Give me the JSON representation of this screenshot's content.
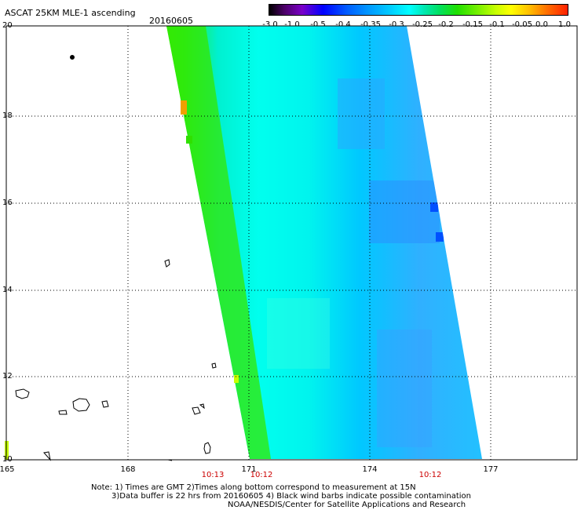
{
  "header": {
    "title": "ASCAT 25KM MLE-1 ascending",
    "date": "20160605"
  },
  "colorbar": {
    "ticks": [
      "-3.0",
      "-1.0",
      "-0.5",
      "-0.4",
      "-0.35",
      "-0.3",
      "-0.25",
      "-0.2",
      "-0.15",
      "-0.1",
      "-0.05",
      "0.0",
      "1.0"
    ]
  },
  "map": {
    "lat_labels": [
      "20",
      "18",
      "16",
      "14",
      "12",
      "10"
    ],
    "lon_labels": [
      "165",
      "168",
      "171",
      "174",
      "177"
    ],
    "pass_times": [
      "10:13",
      "10:12",
      "10:12"
    ]
  },
  "footer": {
    "line1": "Note: 1) Times are GMT 2)Times along bottom correspond to measurement at 15N",
    "line2": "3)Data buffer is 22 hrs from 20160605 4) Black wind barbs indicate possible contamination",
    "line3": "NOAA/NESDIS/Center for Satellite Applications and Research"
  }
}
